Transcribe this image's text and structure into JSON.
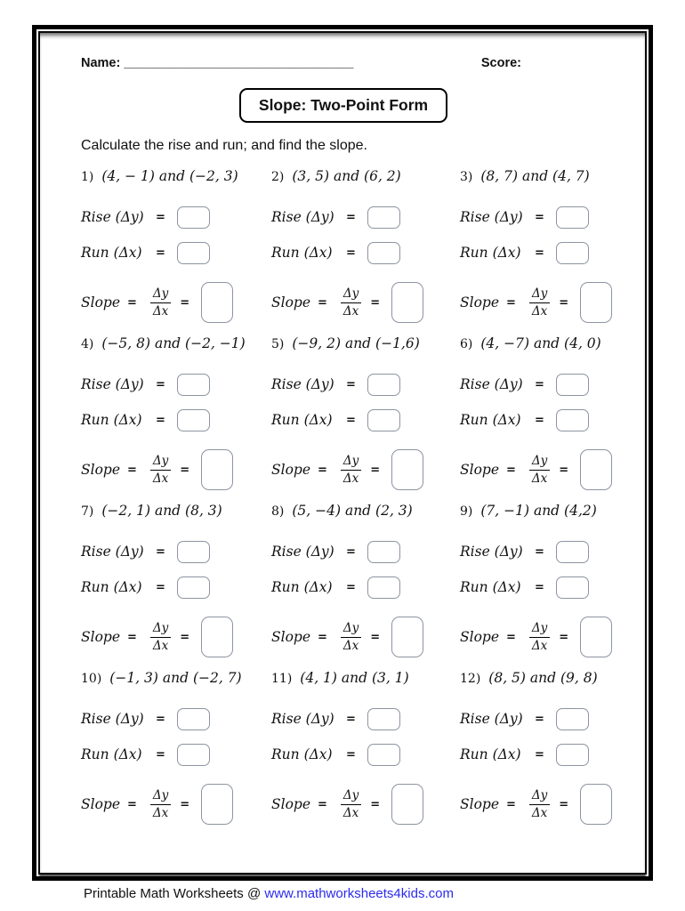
{
  "header": {
    "name_label": "Name:",
    "name_blank": "________________________________",
    "score_label": "Score:"
  },
  "title": "Slope: Two-Point Form",
  "instruction": "Calculate the rise and run; and find the slope.",
  "labels": {
    "rise": "Rise (Δy)",
    "run": "Run (Δx)",
    "slope": "Slope",
    "eq": "=",
    "frac_num": "Δy",
    "frac_den": "Δx"
  },
  "problems": [
    {
      "num": "1)",
      "points": "(4, − 1) and (−2, 3)"
    },
    {
      "num": "2)",
      "points": "(3, 5) and (6, 2)"
    },
    {
      "num": "3)",
      "points": "(8, 7) and (4, 7)"
    },
    {
      "num": "4)",
      "points": "(−5, 8) and (−2, −1)"
    },
    {
      "num": "5)",
      "points": "(−9, 2) and (−1,6)"
    },
    {
      "num": "6)",
      "points": "(4, −7) and (4, 0)"
    },
    {
      "num": "7)",
      "points": "(−2, 1) and (8, 3)"
    },
    {
      "num": "8)",
      "points": "(5, −4) and (2, 3)"
    },
    {
      "num": "9)",
      "points": "(7, −1) and (4,2)"
    },
    {
      "num": "10)",
      "points": "(−1, 3) and (−2, 7)"
    },
    {
      "num": "11)",
      "points": "(4, 1) and (3, 1)"
    },
    {
      "num": "12)",
      "points": "(8, 5) and (9, 8)"
    }
  ],
  "footer": {
    "prefix": "Printable Math Worksheets @ ",
    "link": "www.mathworksheets4kids.com"
  }
}
